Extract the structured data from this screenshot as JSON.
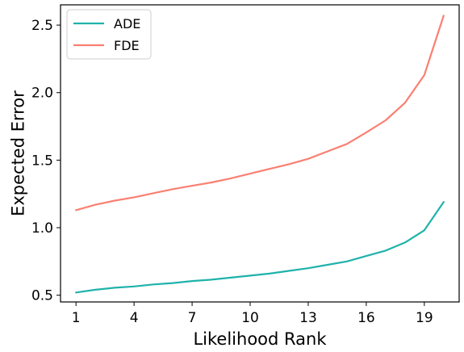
{
  "chart_data": {
    "type": "line",
    "xlabel": "Likelihood Rank",
    "ylabel": "Expected Error",
    "xlim": [
      0.2,
      20.8
    ],
    "ylim": [
      0.45,
      2.65
    ],
    "xticks": [
      1,
      4,
      7,
      10,
      13,
      16,
      19
    ],
    "xtick_labels": [
      "1",
      "4",
      "7",
      "10",
      "13",
      "16",
      "19"
    ],
    "yticks": [
      0.5,
      1.0,
      1.5,
      2.0,
      2.5
    ],
    "ytick_labels": [
      "0.5",
      "1.0",
      "1.5",
      "2.0",
      "2.5"
    ],
    "grid": false,
    "legend_position": "top-left",
    "x": [
      1,
      2,
      3,
      4,
      5,
      6,
      7,
      8,
      9,
      10,
      11,
      12,
      13,
      14,
      15,
      16,
      17,
      18,
      19,
      20
    ],
    "series": [
      {
        "name": "ADE",
        "color": "#20b2aa",
        "values": [
          0.52,
          0.54,
          0.555,
          0.565,
          0.58,
          0.59,
          0.605,
          0.615,
          0.63,
          0.645,
          0.66,
          0.68,
          0.7,
          0.725,
          0.75,
          0.79,
          0.83,
          0.89,
          0.98,
          1.19
        ]
      },
      {
        "name": "FDE",
        "color": "#fa8072",
        "values": [
          1.13,
          1.17,
          1.2,
          1.225,
          1.255,
          1.285,
          1.31,
          1.335,
          1.365,
          1.4,
          1.435,
          1.47,
          1.51,
          1.565,
          1.62,
          1.705,
          1.795,
          1.925,
          2.13,
          2.57
        ]
      }
    ]
  }
}
